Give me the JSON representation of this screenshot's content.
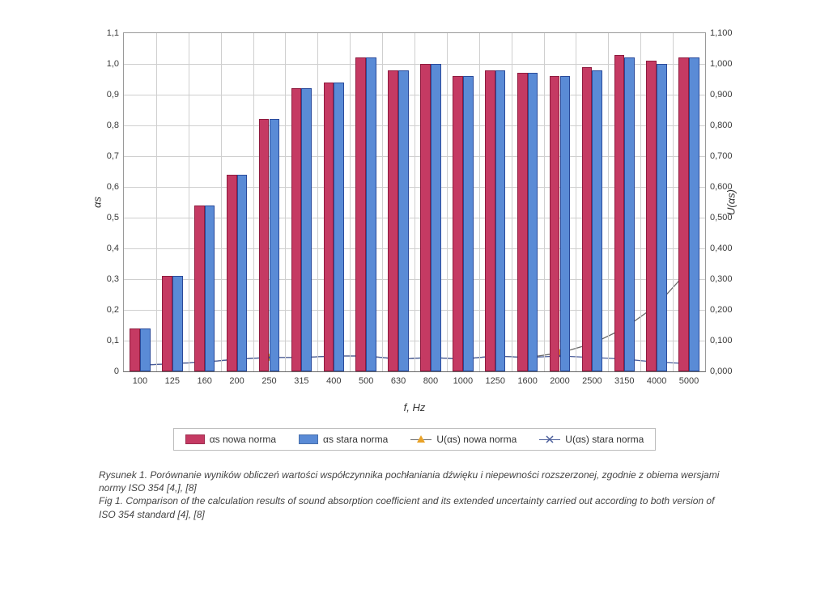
{
  "chart": {
    "type": "bar+line",
    "categories": [
      "100",
      "125",
      "160",
      "200",
      "250",
      "315",
      "400",
      "500",
      "630",
      "800",
      "1000",
      "1250",
      "1600",
      "2000",
      "2500",
      "3150",
      "4000",
      "5000"
    ],
    "series_bars": [
      {
        "name": "αs nowa norma",
        "color": "#c53a63",
        "border": "#8e1b3e",
        "values": [
          0.14,
          0.31,
          0.54,
          0.64,
          0.82,
          0.92,
          0.94,
          1.02,
          0.98,
          1.0,
          0.96,
          0.98,
          0.97,
          0.96,
          0.99,
          1.03,
          1.01,
          1.02
        ]
      },
      {
        "name": "αs stara norma",
        "color": "#5a8bd6",
        "border": "#2a4a9a",
        "values": [
          0.14,
          0.31,
          0.54,
          0.64,
          0.82,
          0.92,
          0.94,
          1.02,
          0.98,
          1.0,
          0.96,
          0.98,
          0.97,
          0.96,
          0.98,
          1.02,
          1.0,
          1.02
        ]
      }
    ],
    "series_lines": [
      {
        "name": "U(αs) nowa norma",
        "color": "#e9a227",
        "marker": "triangle",
        "values": [
          0.02,
          0.025,
          0.03,
          0.04,
          0.045,
          0.045,
          0.05,
          0.05,
          0.04,
          0.045,
          0.04,
          0.05,
          0.045,
          0.06,
          0.09,
          0.14,
          0.215,
          0.33
        ]
      },
      {
        "name": "U(αs) stara norma",
        "color": "#4a5d9a",
        "marker": "cross",
        "values": [
          0.02,
          0.025,
          0.03,
          0.04,
          0.045,
          0.045,
          0.05,
          0.05,
          0.04,
          0.045,
          0.04,
          0.05,
          0.045,
          0.05,
          0.045,
          0.04,
          0.03,
          0.025
        ]
      }
    ],
    "y_left": {
      "label": "αs",
      "min": 0,
      "max": 1.1,
      "step": 0.1,
      "ticks": [
        "0",
        "0,1",
        "0,2",
        "0,3",
        "0,4",
        "0,5",
        "0,6",
        "0,7",
        "0,8",
        "0,9",
        "1,0",
        "1,1"
      ]
    },
    "y_right": {
      "label": "U(αs)",
      "min": 0,
      "max": 1.1,
      "step": 0.1,
      "ticks": [
        "0,000",
        "0,100",
        "0,200",
        "0,300",
        "0,400",
        "0,500",
        "0,600",
        "0,700",
        "0,800",
        "0,900",
        "1,000",
        "1,100"
      ]
    },
    "x_label": "f, Hz",
    "background_color": "#ffffff",
    "grid_color": "#cfcfcf",
    "bar_group_width": 0.64,
    "tick_fontsize": 11,
    "label_fontsize": 13
  },
  "legend": {
    "items": [
      {
        "label": "αs nowa norma"
      },
      {
        "label": "αs stara norma"
      },
      {
        "label": "U(αs) nowa norma"
      },
      {
        "label": "U(αs) stara norma"
      }
    ]
  },
  "caption": {
    "line1": "Rysunek 1. Porównanie wyników obliczeń wartości współczynnika pochłaniania dźwięku i niepewności rozszerzonej, zgodnie z obiema wersjami normy ISO 354 [4,], [8]",
    "line2": "Fig 1. Comparison of the calculation results of sound absorption coefficient and its extended uncertainty carried out according to both version of ISO 354 standard [4], [8]"
  }
}
